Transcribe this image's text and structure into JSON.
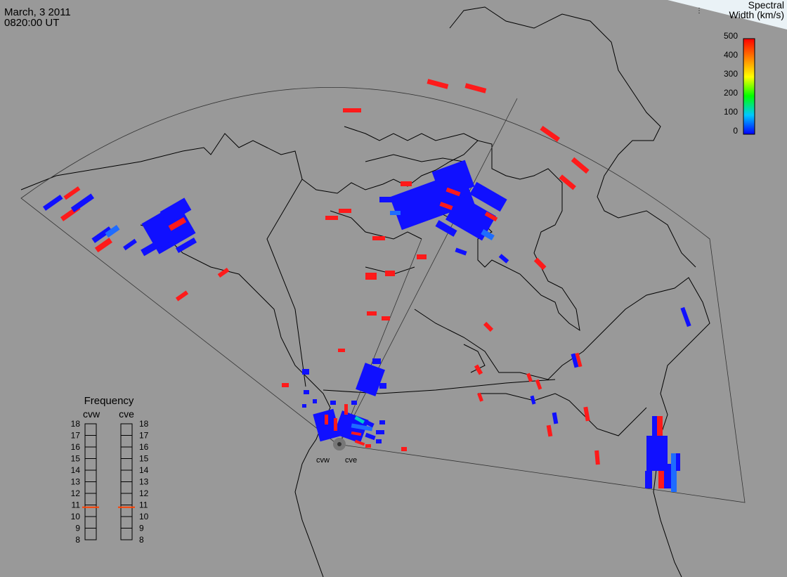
{
  "header": {
    "date": "March, 3 2011",
    "time": "0820:00 UT"
  },
  "colorbar": {
    "title_line1": "Spectral",
    "title_line2": "Width (km/s)",
    "ticks": [
      "500",
      "400",
      "300",
      "200",
      "100",
      "0"
    ]
  },
  "frequency_panel": {
    "title": "Frequency",
    "left_label": "cvw",
    "right_label": "cve",
    "scale": [
      "18",
      "17",
      "16",
      "15",
      "14",
      "13",
      "12",
      "11",
      "10",
      "9",
      "8"
    ]
  },
  "radars": [
    {
      "name": "cvw"
    },
    {
      "name": "cve"
    }
  ],
  "chart_data": {
    "type": "heatmap",
    "title": "",
    "quantity": "Spectral Width (km/s)",
    "color_scale": {
      "min": 0,
      "max": 500,
      "colors": [
        "#0000ff",
        "#00c8ff",
        "#00ff00",
        "#ffff00",
        "#ff8000",
        "#ff0000"
      ]
    },
    "radar_frequencies_mhz": {
      "cvw": 10.8,
      "cve": 10.8
    },
    "legend_placement": "top-right",
    "grid": false
  }
}
